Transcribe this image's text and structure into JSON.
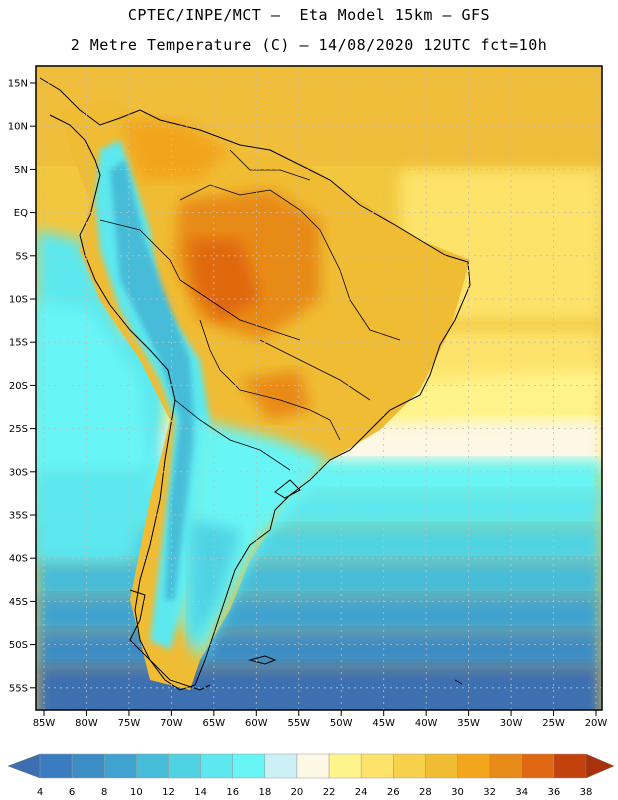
{
  "header": {
    "title_line1": "CPTEC/INPE/MCT –  Eta Model 15km – GFS",
    "title_line2": "2 Metre Temperature (C) – 14/08/2020 12UTC fct=10h"
  },
  "map": {
    "lat_labels": [
      "15N",
      "10N",
      "5N",
      "EQ",
      "5S",
      "10S",
      "15S",
      "20S",
      "25S",
      "30S",
      "35S",
      "40S",
      "45S",
      "50S",
      "55S"
    ],
    "lon_labels": [
      "85W",
      "80W",
      "75W",
      "70W",
      "65W",
      "60W",
      "55W",
      "50W",
      "45W",
      "40W",
      "35W",
      "30W",
      "25W",
      "20W"
    ]
  },
  "colorbar": {
    "labels": [
      "4",
      "6",
      "8",
      "10",
      "12",
      "14",
      "16",
      "18",
      "20",
      "22",
      "24",
      "26",
      "28",
      "30",
      "32",
      "34",
      "36",
      "38"
    ],
    "colors": [
      "#3d6fb0",
      "#3a7cbf",
      "#3c8dc4",
      "#40a3cf",
      "#46bcd8",
      "#4fd3e3",
      "#5ce8ee",
      "#68f5f5",
      "#cbf1f7",
      "#fdf7e5",
      "#fff48c",
      "#fde36a",
      "#f7d14b",
      "#f0bc33",
      "#f2a51d",
      "#e88a17",
      "#e06711",
      "#c2410d",
      "#a8320a"
    ]
  }
}
